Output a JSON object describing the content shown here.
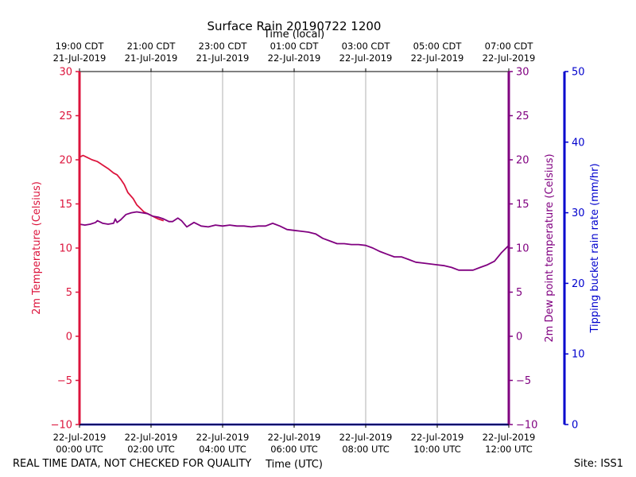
{
  "chart_data": {
    "type": "line",
    "title": "Surface Rain 20190722 1200",
    "top_axis_label": "Time (local)",
    "xlabel": "Time (UTC)",
    "footer_left": "REAL TIME DATA, NOT CHECKED FOR QUALITY",
    "footer_right": "Site: ISS1",
    "x_unit": "hours since 22-Jul-2019 00:00 UTC",
    "xlim": [
      0,
      12
    ],
    "x_ticks": [
      {
        "x": 0,
        "utc_date": "22-Jul-2019",
        "utc_time": "00:00 UTC",
        "local_time": "19:00 CDT",
        "local_date": "21-Jul-2019"
      },
      {
        "x": 2,
        "utc_date": "22-Jul-2019",
        "utc_time": "02:00 UTC",
        "local_time": "21:00 CDT",
        "local_date": "21-Jul-2019"
      },
      {
        "x": 4,
        "utc_date": "22-Jul-2019",
        "utc_time": "04:00 UTC",
        "local_time": "23:00 CDT",
        "local_date": "21-Jul-2019"
      },
      {
        "x": 6,
        "utc_date": "22-Jul-2019",
        "utc_time": "06:00 UTC",
        "local_time": "01:00 CDT",
        "local_date": "22-Jul-2019"
      },
      {
        "x": 8,
        "utc_date": "22-Jul-2019",
        "utc_time": "08:00 UTC",
        "local_time": "03:00 CDT",
        "local_date": "22-Jul-2019"
      },
      {
        "x": 10,
        "utc_date": "22-Jul-2019",
        "utc_time": "10:00 UTC",
        "local_time": "05:00 CDT",
        "local_date": "22-Jul-2019"
      },
      {
        "x": 12,
        "utc_date": "22-Jul-2019",
        "utc_time": "12:00 UTC",
        "local_time": "07:00 CDT",
        "local_date": "22-Jul-2019"
      }
    ],
    "left_axis": {
      "label": "2m Temperature (Celsius)",
      "ylim": [
        -10,
        30
      ],
      "ticks": [
        -10,
        -5,
        0,
        5,
        10,
        15,
        20,
        25,
        30
      ],
      "color": "#dc143c"
    },
    "inner_right_axis": {
      "label": "2m Dew point temperature (Celsius)",
      "ylim": [
        -10,
        30
      ],
      "ticks": [
        -10,
        -5,
        0,
        5,
        10,
        15,
        20,
        25,
        30
      ],
      "color": "#800080"
    },
    "outer_right_axis": {
      "label": "Tipping bucket rain rate (mm/hr)",
      "ylim": [
        0,
        50
      ],
      "ticks": [
        0,
        10,
        20,
        30,
        40,
        50
      ],
      "color": "#0000cd"
    },
    "grid": true,
    "series": [
      {
        "name": "2m Temperature",
        "color": "#dc143c",
        "x": [
          0,
          0.1,
          0.2,
          0.35,
          0.5,
          0.65,
          0.8,
          0.95,
          1.05,
          1.15,
          1.25,
          1.35,
          1.5,
          1.6,
          1.7,
          1.8,
          2.0,
          2.2,
          2.35
        ],
        "y": [
          20.3,
          20.5,
          20.3,
          20.0,
          19.8,
          19.4,
          19.0,
          18.5,
          18.3,
          17.8,
          17.2,
          16.3,
          15.6,
          14.9,
          14.5,
          14.1,
          13.7,
          13.3,
          13.1
        ]
      },
      {
        "name": "2m Dew point temperature",
        "color": "#800080",
        "x": [
          0,
          0.15,
          0.3,
          0.45,
          0.5,
          0.65,
          0.8,
          0.95,
          1.0,
          1.05,
          1.15,
          1.3,
          1.45,
          1.6,
          1.75,
          1.9,
          2.05,
          2.2,
          2.35,
          2.5,
          2.6,
          2.75,
          2.85,
          3.0,
          3.2,
          3.4,
          3.6,
          3.8,
          4.0,
          4.2,
          4.4,
          4.6,
          4.8,
          5.0,
          5.2,
          5.4,
          5.6,
          5.8,
          6.0,
          6.2,
          6.4,
          6.6,
          6.8,
          7.0,
          7.2,
          7.4,
          7.6,
          7.8,
          8.0,
          8.2,
          8.4,
          8.6,
          8.8,
          9.0,
          9.2,
          9.4,
          9.6,
          9.8,
          10.0,
          10.2,
          10.4,
          10.6,
          10.8,
          11.0,
          11.2,
          11.4,
          11.6,
          11.8,
          12.0
        ],
        "y": [
          12.7,
          12.6,
          12.7,
          12.9,
          13.1,
          12.8,
          12.7,
          12.8,
          13.3,
          12.9,
          13.2,
          13.8,
          14.0,
          14.1,
          14.0,
          13.9,
          13.6,
          13.5,
          13.3,
          13.0,
          13.0,
          13.4,
          13.1,
          12.4,
          12.9,
          12.5,
          12.4,
          12.6,
          12.5,
          12.6,
          12.5,
          12.5,
          12.4,
          12.5,
          12.5,
          12.8,
          12.5,
          12.1,
          12.0,
          11.9,
          11.8,
          11.6,
          11.1,
          10.8,
          10.5,
          10.5,
          10.4,
          10.4,
          10.3,
          10.0,
          9.6,
          9.3,
          9.0,
          9.0,
          8.7,
          8.4,
          8.3,
          8.2,
          8.1,
          8.0,
          7.8,
          7.5,
          7.5,
          7.5,
          7.8,
          8.1,
          8.5,
          9.5,
          10.3
        ]
      },
      {
        "name": "Tipping bucket rain rate",
        "color": "#0000cd",
        "x": [
          0,
          12
        ],
        "y": [
          0,
          0
        ]
      }
    ]
  }
}
